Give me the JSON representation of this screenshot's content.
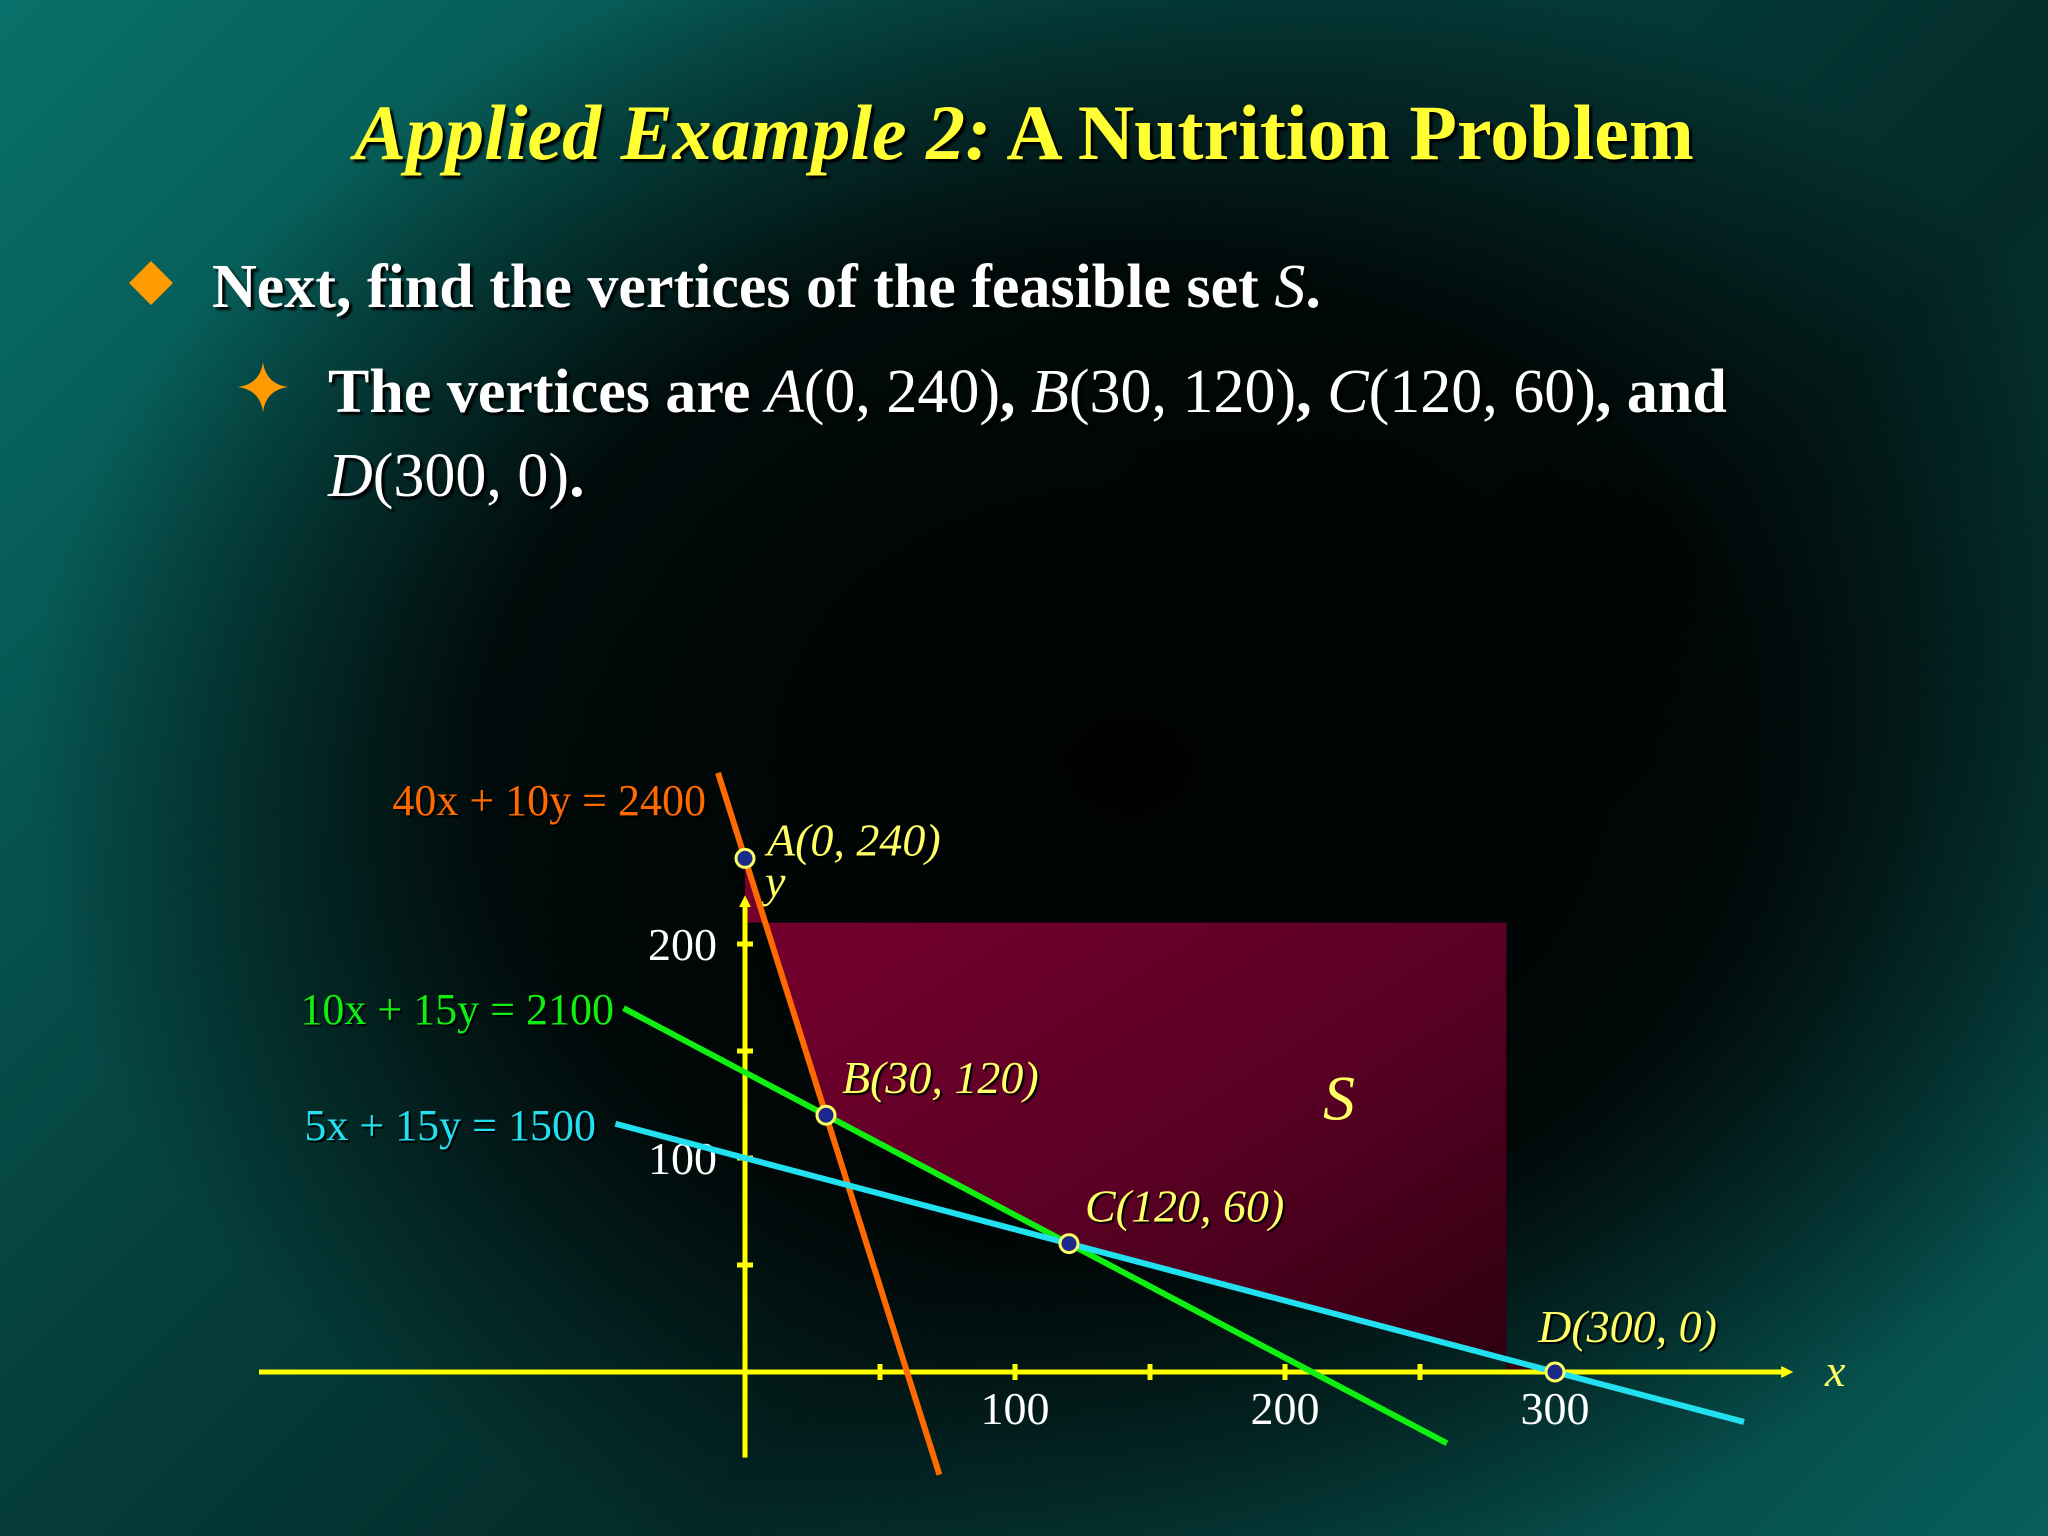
{
  "slide": {
    "title_italic": "Applied Example 2:",
    "title_plain": "A Nutrition Problem",
    "bullet1": {
      "prefix": "Next, find the vertices of the feasible set ",
      "var": "S",
      "suffix": "."
    },
    "bullet2": {
      "prefix": "The vertices are ",
      "a_name": "A",
      "a_coords": "(0, 240)",
      "sep1": ", ",
      "b_name": "B",
      "b_coords": "(30, 120)",
      "sep2": ", ",
      "c_name": "C",
      "c_coords": "(120, 60)",
      "sep3": ", and",
      "d_name": "D",
      "d_coords": "(300, 0)",
      "end": "."
    },
    "bullet1_marker_icon": "diamond-icon",
    "bullet2_marker_icon": "four-point-star-icon"
  },
  "graph": {
    "x_axis_label": "x",
    "y_axis_label": "y",
    "x_ticks": [
      50,
      100,
      150,
      200,
      250,
      300
    ],
    "x_tick_labels": [
      "100",
      "200",
      "300"
    ],
    "y_ticks": [
      50,
      100,
      150,
      200
    ],
    "y_tick_labels": [
      "100",
      "200"
    ],
    "region_label": "S",
    "colors": {
      "axes": "#ffff00",
      "region": "#6a0028",
      "line_orange": "#ff6a00",
      "line_green": "#11ee11",
      "line_cyan": "#22e0f0",
      "vertex_label": "#ffff66",
      "vertex_fill": "#1a2a8a"
    },
    "lines": [
      {
        "id": "orange",
        "equation": "40x + 10y = 2400",
        "a": 40,
        "b": 10,
        "c": 2400,
        "color": "#ff6a00"
      },
      {
        "id": "green",
        "equation": "10x + 15y = 2100",
        "a": 10,
        "b": 15,
        "c": 2100,
        "color": "#11ee11"
      },
      {
        "id": "cyan",
        "equation": "5x + 15y = 1500",
        "a": 5,
        "b": 15,
        "c": 1500,
        "color": "#22e0f0"
      }
    ],
    "vertices": [
      {
        "name": "A",
        "x": 0,
        "y": 240,
        "label": "A(0, 240)"
      },
      {
        "name": "B",
        "x": 30,
        "y": 120,
        "label": "B(30, 120)"
      },
      {
        "name": "C",
        "x": 120,
        "y": 60,
        "label": "C(120, 60)"
      },
      {
        "name": "D",
        "x": 300,
        "y": 0,
        "label": "D(300, 0)"
      }
    ]
  }
}
